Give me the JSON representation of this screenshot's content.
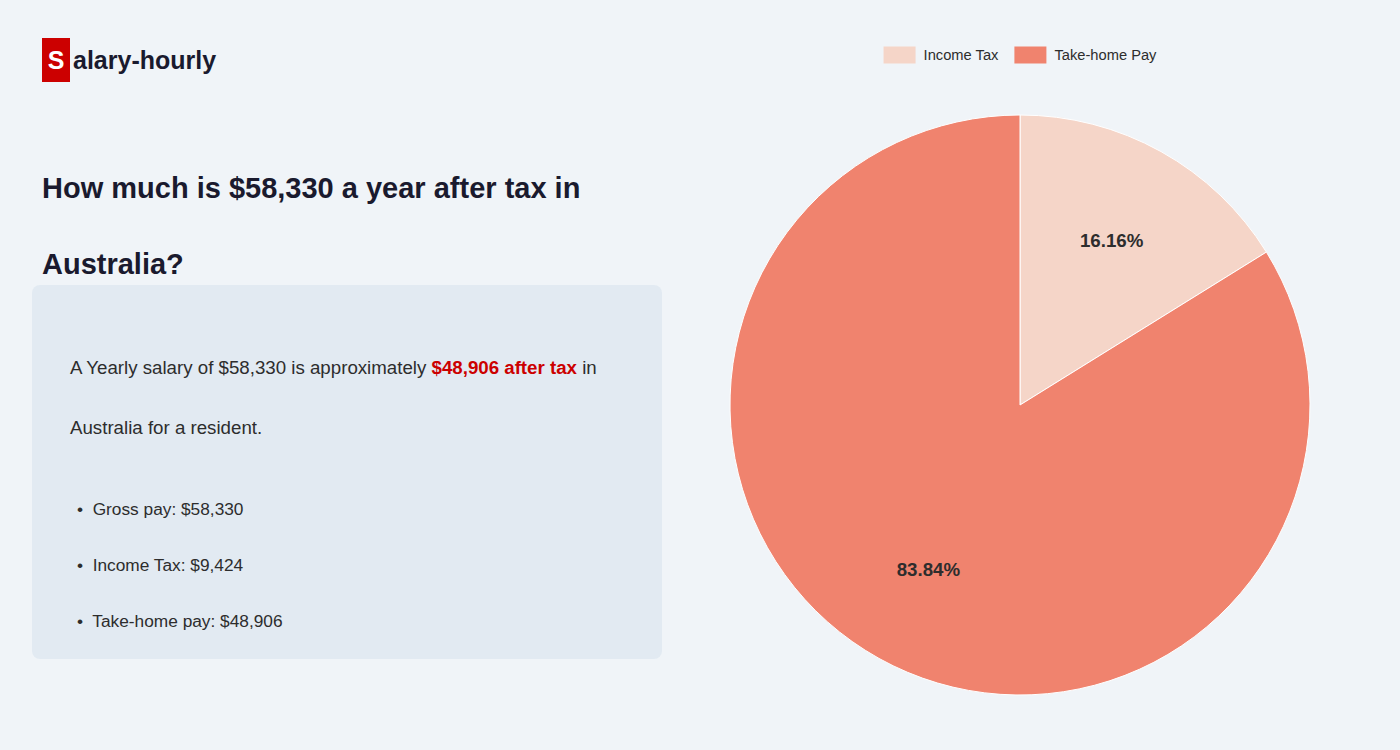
{
  "chart_data": {
    "type": "pie",
    "title": "How much is $58,330 a year after tax in Australia?",
    "annotations": [
      "S",
      "alary-hourly",
      "A Yearly salary of $58,330 is approximately ",
      "$48,906 after tax",
      " in",
      "Australia for a resident.",
      "•  Gross pay: $58,330",
      "•  Income Tax: $9,424",
      "•  Take-home pay: $48,906"
    ],
    "categories": [
      "Income Tax",
      "Take-home Pay"
    ],
    "values": [
      16.16,
      83.84
    ],
    "value_labels": [
      "16.16%",
      "83.84%"
    ],
    "colors": [
      "#f5d5c8",
      "#f0836e"
    ],
    "data_labels": true,
    "legend": "top"
  }
}
